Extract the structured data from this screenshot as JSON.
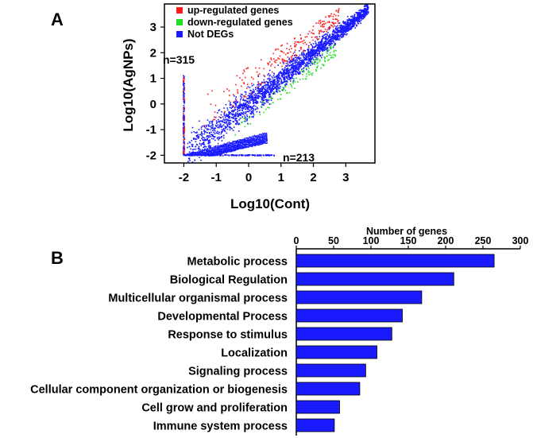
{
  "colors": {
    "up": "#ff1a1a",
    "down": "#22dd22",
    "notdeg": "#1a1aff",
    "bar": "#1a1aff",
    "axis": "#000000"
  },
  "chart_data": [
    {
      "type": "scatter",
      "panel_label": "A",
      "title": "",
      "xlabel": "Log10(Cont)",
      "ylabel": "Log10(AgNPs)",
      "xlim": [
        -2.6,
        3.9
      ],
      "ylim": [
        -2.3,
        3.9
      ],
      "xticks": [
        -2,
        -1,
        0,
        1,
        2,
        3
      ],
      "yticks": [
        -2,
        -1,
        0,
        1,
        2,
        3
      ],
      "grid": false,
      "legend_position": "top-left",
      "legend": [
        {
          "key": "up",
          "label": "up-regulated genes"
        },
        {
          "key": "down",
          "label": "down-regulated genes"
        },
        {
          "key": "notdeg",
          "label": "Not DEGs"
        }
      ],
      "annotations": [
        {
          "text": "n=315",
          "x": -2.0,
          "y": 1.5
        },
        {
          "text": "n=213",
          "x": 1.4,
          "y": -2.0
        }
      ],
      "series": [
        {
          "name": "Not DEGs",
          "key": "notdeg",
          "trend": "y = x",
          "x_range": [
            -1.9,
            3.7
          ],
          "spread": 0.45
        },
        {
          "name": "up-regulated genes",
          "key": "up",
          "region": "above diagonal",
          "x_range": [
            -1.5,
            2.8
          ]
        },
        {
          "name": "down-regulated genes",
          "key": "down",
          "region": "below diagonal",
          "x_range": [
            -0.5,
            2.7
          ]
        },
        {
          "name": "n=315",
          "key": "notdeg",
          "x": -2.0,
          "y_range": [
            -2.0,
            1.1
          ]
        },
        {
          "name": "n=213",
          "key": "notdeg",
          "y": -2.0,
          "x_range": [
            -2.0,
            0.8
          ]
        }
      ]
    },
    {
      "type": "bar",
      "orientation": "horizontal",
      "panel_label": "B",
      "title": "Number of genes",
      "xlabel": "Number of genes",
      "ylabel": "",
      "xlim": [
        0,
        300
      ],
      "xticks": [
        0,
        50,
        100,
        150,
        200,
        250,
        300
      ],
      "grid": false,
      "categories": [
        "Metabolic process",
        "Biological Regulation",
        "Multicellular organismal process",
        "Developmental Process",
        "Response to stimulus",
        "Localization",
        "Signaling process",
        "Cellular component organization or biogenesis",
        "Cell grow and proliferation",
        "Immune system process"
      ],
      "values": [
        265,
        211,
        168,
        142,
        128,
        108,
        93,
        85,
        58,
        51
      ]
    }
  ]
}
